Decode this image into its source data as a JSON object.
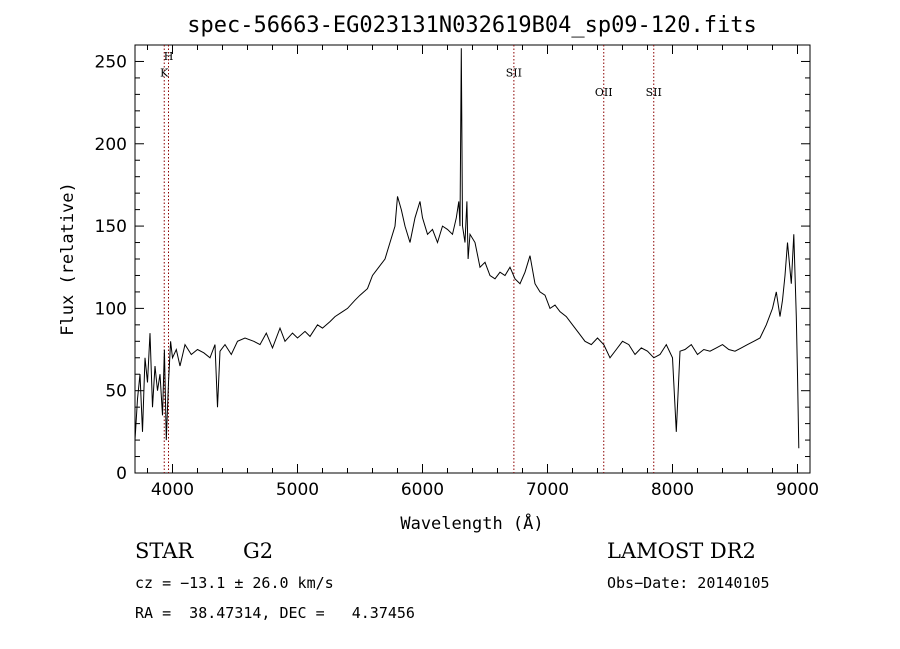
{
  "chart_data": {
    "type": "line",
    "title": "spec-56663-EG023131N032619B04_sp09-120.fits",
    "xlabel": "Wavelength (Å)",
    "ylabel": "Flux (relative)",
    "xlim": [
      3700,
      9100
    ],
    "ylim": [
      0,
      260
    ],
    "xticks": [
      4000,
      5000,
      6000,
      7000,
      8000,
      9000
    ],
    "yticks": [
      0,
      50,
      100,
      150,
      200,
      250
    ],
    "grid": false,
    "series": [
      {
        "x": [
          3700,
          3720,
          3740,
          3760,
          3780,
          3800,
          3820,
          3840,
          3860,
          3880,
          3900,
          3920,
          3935,
          3950,
          3968,
          3985,
          4000,
          4030,
          4060,
          4100,
          4150,
          4200,
          4250,
          4300,
          4340,
          4360,
          4380,
          4420,
          4470,
          4520,
          4580,
          4650,
          4700,
          4750,
          4800,
          4860,
          4900,
          4960,
          5000,
          5060,
          5100,
          5160,
          5200,
          5260,
          5300,
          5360,
          5400,
          5460,
          5500,
          5560,
          5600,
          5650,
          5700,
          5740,
          5780,
          5800,
          5830,
          5860,
          5900,
          5940,
          5980,
          6000,
          6040,
          6080,
          6120,
          6160,
          6200,
          6240,
          6270,
          6290,
          6300,
          6310,
          6320,
          6340,
          6355,
          6365,
          6380,
          6420,
          6460,
          6500,
          6540,
          6580,
          6620,
          6660,
          6700,
          6740,
          6780,
          6820,
          6860,
          6900,
          6940,
          6980,
          7020,
          7060,
          7100,
          7150,
          7200,
          7250,
          7300,
          7350,
          7400,
          7450,
          7500,
          7550,
          7600,
          7650,
          7700,
          7750,
          7800,
          7850,
          7900,
          7950,
          8000,
          8030,
          8060,
          8100,
          8150,
          8200,
          8250,
          8300,
          8350,
          8400,
          8450,
          8500,
          8550,
          8600,
          8650,
          8700,
          8750,
          8800,
          8830,
          8860,
          8880,
          8900,
          8920,
          8950,
          8970,
          8990,
          9000,
          9010
        ],
        "y": [
          20,
          45,
          60,
          25,
          70,
          55,
          85,
          40,
          65,
          50,
          60,
          35,
          75,
          20,
          55,
          80,
          70,
          75,
          65,
          78,
          72,
          75,
          73,
          70,
          78,
          40,
          74,
          78,
          72,
          80,
          82,
          80,
          78,
          85,
          76,
          88,
          80,
          85,
          82,
          86,
          83,
          90,
          88,
          92,
          95,
          98,
          100,
          105,
          108,
          112,
          120,
          125,
          130,
          140,
          150,
          168,
          160,
          150,
          140,
          155,
          165,
          155,
          145,
          148,
          140,
          150,
          148,
          145,
          155,
          165,
          150,
          258,
          150,
          140,
          165,
          130,
          145,
          140,
          125,
          128,
          120,
          118,
          122,
          120,
          125,
          118,
          115,
          122,
          132,
          115,
          110,
          108,
          100,
          102,
          98,
          95,
          90,
          85,
          80,
          78,
          82,
          78,
          70,
          75,
          80,
          78,
          72,
          76,
          74,
          70,
          72,
          78,
          70,
          25,
          74,
          75,
          78,
          72,
          75,
          74,
          76,
          78,
          75,
          74,
          76,
          78,
          80,
          82,
          90,
          100,
          110,
          95,
          105,
          120,
          140,
          115,
          145,
          95,
          60,
          15
        ]
      }
    ],
    "lines": [
      {
        "label": "H",
        "x": 3968,
        "label_y": 251
      },
      {
        "label": "K",
        "x": 3934,
        "label_y": 241
      },
      {
        "label": "SII",
        "x": 6731,
        "label_y": 241
      },
      {
        "label": "OII",
        "x": 7450,
        "label_y": 229
      },
      {
        "label": "SII",
        "x": 7850,
        "label_y": 229
      }
    ]
  },
  "info": {
    "object_class": "STAR",
    "subclass": "G2",
    "survey": "LAMOST DR2",
    "cz": "cz = −13.1 ± 26.0 km/s",
    "obs_date": "Obs−Date: 20140105",
    "coords": "RA =  38.47314, DEC =   4.37456"
  }
}
